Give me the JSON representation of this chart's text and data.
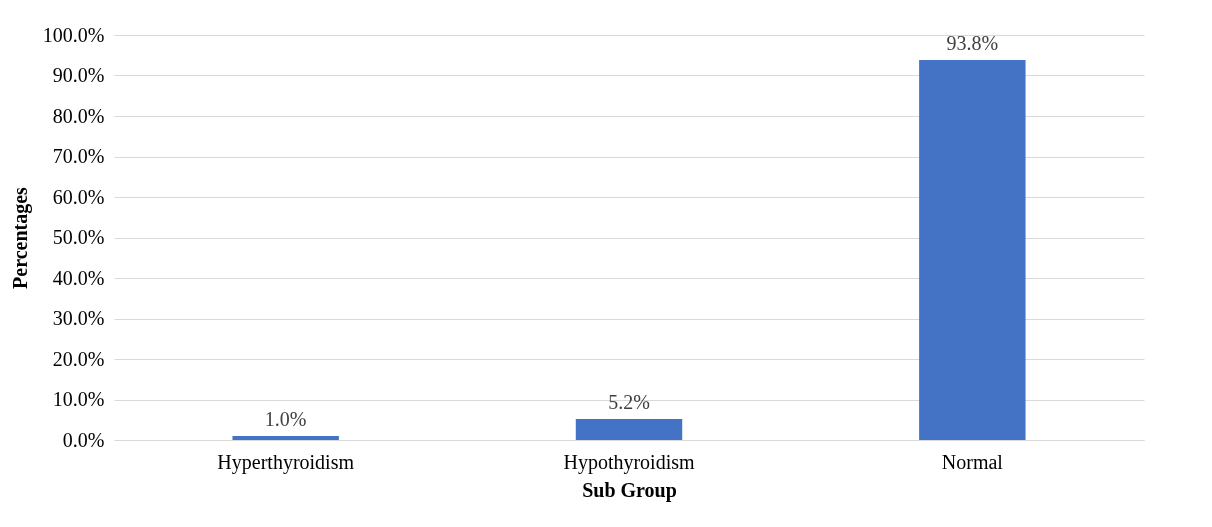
{
  "chart_data": {
    "type": "bar",
    "xlabel": "Sub Group",
    "ylabel": "Percentages",
    "categories": [
      "Hyperthyroidism",
      "Hypothyroidism",
      "Normal"
    ],
    "values": [
      1.0,
      5.2,
      93.8
    ],
    "value_labels": [
      "1.0%",
      "5.2%",
      "93.8%"
    ],
    "color": "#4472c4",
    "ylim": [
      0,
      100
    ],
    "yticks": [
      {
        "value": 0,
        "label": "0.0%"
      },
      {
        "value": 10,
        "label": "10.0%"
      },
      {
        "value": 20,
        "label": "20.0%"
      },
      {
        "value": 30,
        "label": "30.0%"
      },
      {
        "value": 40,
        "label": "40.0%"
      },
      {
        "value": 50,
        "label": "50.0%"
      },
      {
        "value": 60,
        "label": "60.0%"
      },
      {
        "value": 70,
        "label": "70.0%"
      },
      {
        "value": 80,
        "label": "80.0%"
      },
      {
        "value": 90,
        "label": "90.0%"
      },
      {
        "value": 100,
        "label": "100.0%"
      }
    ],
    "grid": "y"
  }
}
